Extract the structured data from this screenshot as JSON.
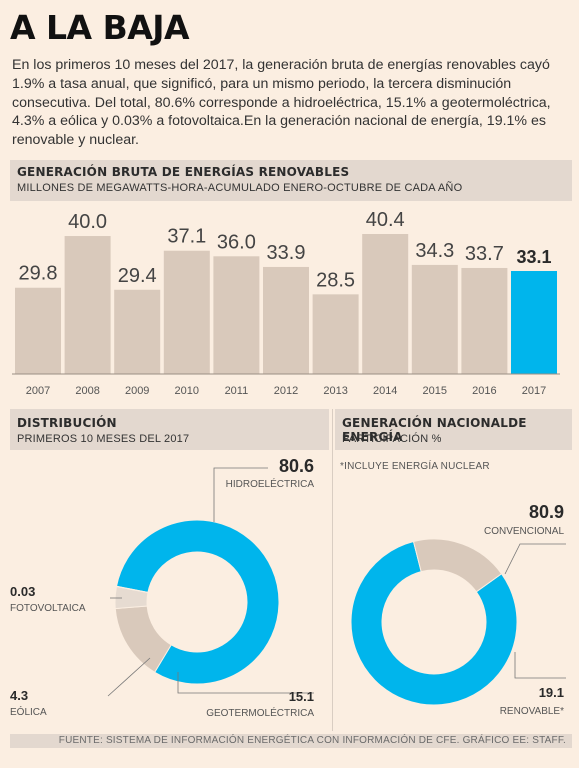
{
  "title": "A LA BAJA",
  "intro": "En los primeros 10 meses del 2017, la generación bruta de energías renovables cayó 1.9% a tasa anual, que significó, para un mismo periodo, la tercera disminución consecutiva. Del total, 80.6% corresponde a hidroeléctrica, 15.1% a geotermoléctrica, 4.3% a eólica y 0.03% a fotovoltaica.En la generación nacional de energía, 19.1% es renovable y nuclear.",
  "colors": {
    "bar": "#d9c9bb",
    "highlight": "#00b5ec",
    "header": "#e3d8cf",
    "background": "#fbeee1"
  },
  "source": "FUENTE: SISTEMA DE INFORMACIÓN ENERGÉTICA CON INFORMACIÓN DE CFE.  GRÁFICO EE: STAFF.",
  "chart_data": [
    {
      "type": "bar",
      "title": "GENERACIÓN BRUTA DE ENERGÍAS RENOVABLES",
      "subtitle": "MILLONES DE MEGAWATTS-HORA-ACUMULADO ENERO-OCTUBRE DE CADA AÑO",
      "categories": [
        "2007",
        "2008",
        "2009",
        "2010",
        "2011",
        "2012",
        "2013",
        "2014",
        "2015",
        "2016",
        "2017"
      ],
      "values": [
        29.8,
        40.0,
        29.4,
        37.1,
        36.0,
        33.9,
        28.5,
        40.4,
        34.3,
        33.7,
        33.1
      ],
      "labels": [
        "29.8",
        "40.0",
        "29.4",
        "37.1",
        "36.0",
        "33.9",
        "28.5",
        "40.4",
        "34.3",
        "33.7",
        "33.1"
      ],
      "highlight_index": 10
    },
    {
      "type": "pie",
      "title": "DISTRIBUCIÓN",
      "subtitle": "PRIMEROS 10 MESES DEL 2017",
      "slices": [
        {
          "label": "HIDROELÉCTRICA",
          "value": 80.6,
          "display": "80.6",
          "color": "#00b5ec"
        },
        {
          "label": "GEOTERMOLÉCTRICA",
          "value": 15.1,
          "display": "15.1",
          "color": "#d9c9bb"
        },
        {
          "label": "EÓLICA",
          "value": 4.3,
          "display": "4.3",
          "color": "#e6dbd1"
        },
        {
          "label": "FOTOVOLTAICA",
          "value": 0.03,
          "display": "0.03",
          "color": "#d9c9bb"
        }
      ]
    },
    {
      "type": "pie",
      "title": "GENERACIÓN NACIONALDE ENERGÍA",
      "subtitle": "PARTICIPACIÓN %",
      "note": "*INCLUYE ENERGÍA NUCLEAR",
      "slices": [
        {
          "label": "CONVENCIONAL",
          "value": 80.9,
          "display": "80.9",
          "color": "#00b5ec"
        },
        {
          "label": "RENOVABLE*",
          "value": 19.1,
          "display": "19.1",
          "color": "#d9c9bb"
        }
      ]
    }
  ]
}
